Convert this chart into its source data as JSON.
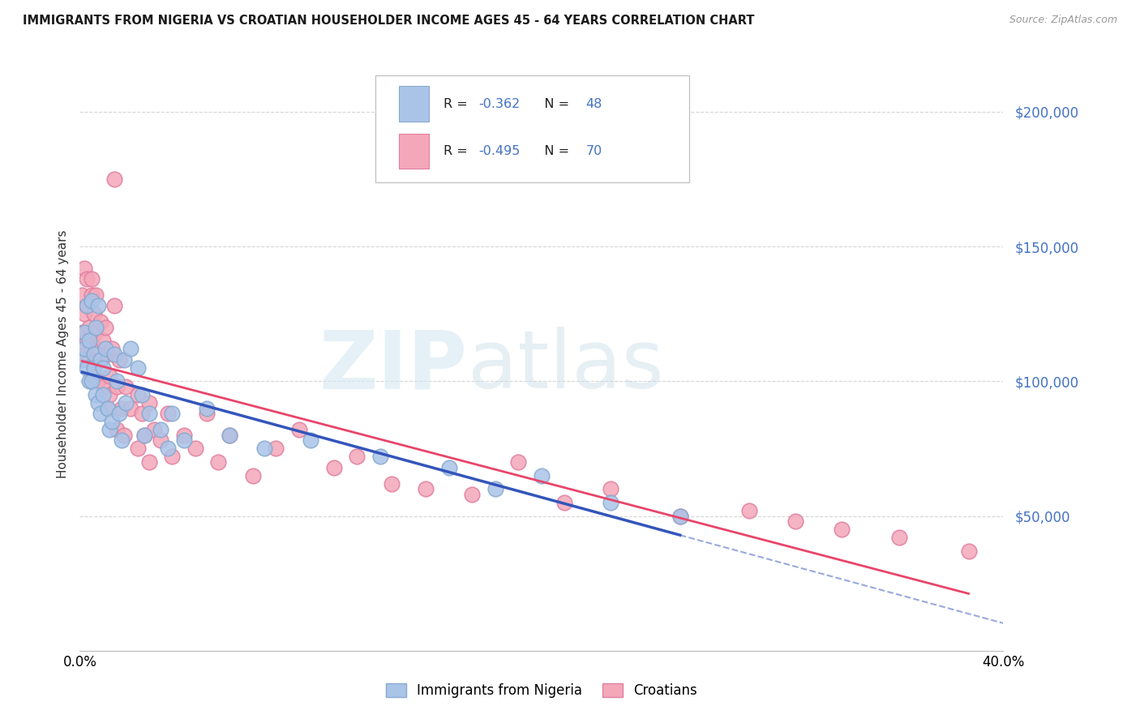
{
  "title": "IMMIGRANTS FROM NIGERIA VS CROATIAN HOUSEHOLDER INCOME AGES 45 - 64 YEARS CORRELATION CHART",
  "source": "Source: ZipAtlas.com",
  "ylabel": "Householder Income Ages 45 - 64 years",
  "xmin": 0.0,
  "xmax": 0.4,
  "ymin": 0,
  "ymax": 220000,
  "yticks": [
    50000,
    100000,
    150000,
    200000
  ],
  "ytick_labels": [
    "$50,000",
    "$100,000",
    "$150,000",
    "$200,000"
  ],
  "grid_color": "#cccccc",
  "background_color": "#ffffff",
  "nigeria_color": "#aac4e8",
  "nigeria_edge_color": "#88aad0",
  "croatia_color": "#f4a7b9",
  "croatia_edge_color": "#e080a0",
  "nigeria_line_color": "#3355bb",
  "croatia_line_color": "#e8456a",
  "ytick_color": "#4472c4",
  "legend_text_color": "#222222",
  "legend_value_color": "#4472c4",
  "legend_R_nigeria": "-0.362",
  "legend_N_nigeria": "48",
  "legend_R_croatia": "-0.495",
  "legend_N_croatia": "70",
  "legend_label_nigeria": "Immigrants from Nigeria",
  "legend_label_croatia": "Croatians",
  "watermark_zip": "ZIP",
  "watermark_atlas": "atlas",
  "nigeria_points": [
    [
      0.001,
      108000
    ],
    [
      0.002,
      118000
    ],
    [
      0.002,
      112000
    ],
    [
      0.003,
      128000
    ],
    [
      0.003,
      105000
    ],
    [
      0.004,
      115000
    ],
    [
      0.004,
      100000
    ],
    [
      0.005,
      130000
    ],
    [
      0.005,
      100000
    ],
    [
      0.006,
      110000
    ],
    [
      0.006,
      105000
    ],
    [
      0.007,
      120000
    ],
    [
      0.007,
      95000
    ],
    [
      0.008,
      128000
    ],
    [
      0.008,
      92000
    ],
    [
      0.009,
      108000
    ],
    [
      0.009,
      88000
    ],
    [
      0.01,
      105000
    ],
    [
      0.01,
      95000
    ],
    [
      0.011,
      112000
    ],
    [
      0.012,
      90000
    ],
    [
      0.013,
      82000
    ],
    [
      0.014,
      85000
    ],
    [
      0.015,
      110000
    ],
    [
      0.016,
      100000
    ],
    [
      0.017,
      88000
    ],
    [
      0.018,
      78000
    ],
    [
      0.019,
      108000
    ],
    [
      0.02,
      92000
    ],
    [
      0.022,
      112000
    ],
    [
      0.025,
      105000
    ],
    [
      0.027,
      95000
    ],
    [
      0.028,
      80000
    ],
    [
      0.03,
      88000
    ],
    [
      0.035,
      82000
    ],
    [
      0.038,
      75000
    ],
    [
      0.04,
      88000
    ],
    [
      0.045,
      78000
    ],
    [
      0.055,
      90000
    ],
    [
      0.065,
      80000
    ],
    [
      0.08,
      75000
    ],
    [
      0.1,
      78000
    ],
    [
      0.13,
      72000
    ],
    [
      0.16,
      68000
    ],
    [
      0.18,
      60000
    ],
    [
      0.2,
      65000
    ],
    [
      0.23,
      55000
    ],
    [
      0.26,
      50000
    ]
  ],
  "croatia_points": [
    [
      0.001,
      132000
    ],
    [
      0.001,
      118000
    ],
    [
      0.002,
      125000
    ],
    [
      0.002,
      110000
    ],
    [
      0.002,
      142000
    ],
    [
      0.003,
      128000
    ],
    [
      0.003,
      115000
    ],
    [
      0.003,
      138000
    ],
    [
      0.004,
      120000
    ],
    [
      0.004,
      108000
    ],
    [
      0.005,
      132000
    ],
    [
      0.005,
      112000
    ],
    [
      0.005,
      138000
    ],
    [
      0.006,
      125000
    ],
    [
      0.006,
      102000
    ],
    [
      0.007,
      132000
    ],
    [
      0.007,
      118000
    ],
    [
      0.008,
      112000
    ],
    [
      0.008,
      100000
    ],
    [
      0.009,
      122000
    ],
    [
      0.009,
      108000
    ],
    [
      0.01,
      115000
    ],
    [
      0.01,
      98000
    ],
    [
      0.011,
      120000
    ],
    [
      0.012,
      110000
    ],
    [
      0.012,
      90000
    ],
    [
      0.013,
      102000
    ],
    [
      0.013,
      95000
    ],
    [
      0.014,
      112000
    ],
    [
      0.015,
      175000
    ],
    [
      0.015,
      128000
    ],
    [
      0.016,
      98000
    ],
    [
      0.016,
      82000
    ],
    [
      0.017,
      108000
    ],
    [
      0.018,
      90000
    ],
    [
      0.019,
      80000
    ],
    [
      0.02,
      98000
    ],
    [
      0.022,
      90000
    ],
    [
      0.025,
      95000
    ],
    [
      0.025,
      75000
    ],
    [
      0.027,
      88000
    ],
    [
      0.028,
      80000
    ],
    [
      0.03,
      92000
    ],
    [
      0.03,
      70000
    ],
    [
      0.032,
      82000
    ],
    [
      0.035,
      78000
    ],
    [
      0.038,
      88000
    ],
    [
      0.04,
      72000
    ],
    [
      0.045,
      80000
    ],
    [
      0.05,
      75000
    ],
    [
      0.055,
      88000
    ],
    [
      0.06,
      70000
    ],
    [
      0.065,
      80000
    ],
    [
      0.075,
      65000
    ],
    [
      0.085,
      75000
    ],
    [
      0.095,
      82000
    ],
    [
      0.11,
      68000
    ],
    [
      0.12,
      72000
    ],
    [
      0.135,
      62000
    ],
    [
      0.15,
      60000
    ],
    [
      0.17,
      58000
    ],
    [
      0.19,
      70000
    ],
    [
      0.21,
      55000
    ],
    [
      0.23,
      60000
    ],
    [
      0.26,
      50000
    ],
    [
      0.29,
      52000
    ],
    [
      0.31,
      48000
    ],
    [
      0.33,
      45000
    ],
    [
      0.355,
      42000
    ],
    [
      0.385,
      37000
    ]
  ]
}
